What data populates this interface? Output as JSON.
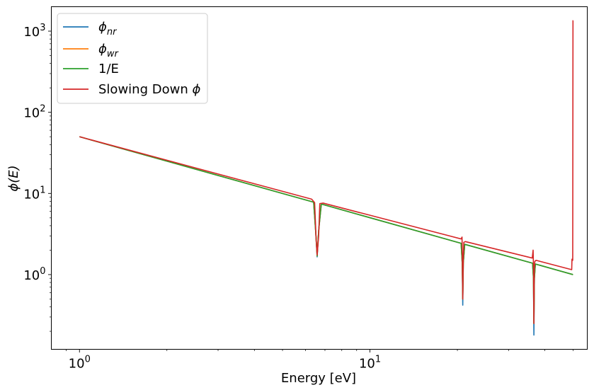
{
  "chart_data": {
    "type": "line",
    "title": "",
    "xlabel": "Energy [eV]",
    "ylabel": "ϕ(E)",
    "x_scale": "log",
    "y_scale": "log",
    "xlim": [
      0.8,
      56
    ],
    "ylim": [
      0.12,
      2000
    ],
    "grid": false,
    "legend_position": "top-left",
    "x_ticks": [
      {
        "value": 1,
        "base": "10",
        "exp": "0"
      },
      {
        "value": 10,
        "base": "10",
        "exp": "1"
      }
    ],
    "y_ticks": [
      {
        "value": 1,
        "base": "10",
        "exp": "0"
      },
      {
        "value": 10,
        "base": "10",
        "exp": "1"
      },
      {
        "value": 100,
        "base": "10",
        "exp": "2"
      },
      {
        "value": 1000,
        "base": "10",
        "exp": "3"
      }
    ],
    "series": [
      {
        "legend": {
          "main": "ϕ",
          "sub": "nr"
        },
        "color": "#1f77b4",
        "points": [
          [
            1,
            50
          ],
          [
            6.4,
            7.8
          ],
          [
            6.5,
            3.5
          ],
          [
            6.58,
            1.65
          ],
          [
            6.66,
            3.5
          ],
          [
            6.8,
            7.4
          ],
          [
            20.6,
            2.43
          ],
          [
            20.78,
            1.4
          ],
          [
            20.87,
            0.42
          ],
          [
            20.96,
            1.4
          ],
          [
            21.2,
            2.36
          ],
          [
            36.3,
            1.38
          ],
          [
            36.55,
            0.9
          ],
          [
            36.68,
            0.18
          ],
          [
            36.82,
            0.9
          ],
          [
            37.1,
            1.35
          ],
          [
            50,
            1.0
          ]
        ]
      },
      {
        "legend": {
          "main": "ϕ",
          "sub": "wr"
        },
        "color": "#ff7f0e",
        "points": [
          [
            1,
            50
          ],
          [
            6.4,
            7.8
          ],
          [
            6.5,
            3.5
          ],
          [
            6.58,
            1.7
          ],
          [
            6.66,
            3.5
          ],
          [
            6.8,
            7.4
          ],
          [
            20.6,
            2.43
          ],
          [
            20.78,
            1.4
          ],
          [
            20.87,
            0.5
          ],
          [
            20.96,
            1.4
          ],
          [
            21.2,
            2.36
          ],
          [
            36.3,
            1.38
          ],
          [
            36.55,
            0.9
          ],
          [
            36.68,
            0.25
          ],
          [
            36.82,
            0.9
          ],
          [
            37.1,
            1.35
          ],
          [
            50,
            1.0
          ]
        ]
      },
      {
        "legend": {
          "main": "1/E",
          "sub": ""
        },
        "color": "#2ca02c",
        "points": [
          [
            1,
            50
          ],
          [
            6.4,
            7.8
          ],
          [
            6.5,
            3.5
          ],
          [
            6.58,
            1.7
          ],
          [
            6.66,
            3.5
          ],
          [
            6.8,
            7.4
          ],
          [
            20.6,
            2.43
          ],
          [
            20.78,
            1.4
          ],
          [
            20.87,
            0.5
          ],
          [
            20.96,
            1.4
          ],
          [
            21.2,
            2.36
          ],
          [
            36.3,
            1.38
          ],
          [
            36.55,
            0.9
          ],
          [
            36.68,
            0.25
          ],
          [
            36.82,
            0.9
          ],
          [
            37.1,
            1.35
          ],
          [
            50,
            1.0
          ]
        ]
      },
      {
        "legend": {
          "main": "Slowing Down ϕ",
          "sub": ""
        },
        "color": "#d62728",
        "points": [
          [
            1,
            50
          ],
          [
            6.3,
            8.5
          ],
          [
            6.45,
            7.7
          ],
          [
            6.52,
            3.0
          ],
          [
            6.58,
            1.75
          ],
          [
            6.66,
            3.0
          ],
          [
            6.72,
            7.5
          ],
          [
            6.9,
            7.6
          ],
          [
            20.6,
            2.75
          ],
          [
            20.75,
            2.9
          ],
          [
            20.8,
            1.6
          ],
          [
            20.87,
            0.5
          ],
          [
            20.95,
            1.6
          ],
          [
            21.05,
            2.5
          ],
          [
            21.3,
            2.55
          ],
          [
            36.2,
            1.6
          ],
          [
            36.45,
            2.0
          ],
          [
            36.58,
            1.2
          ],
          [
            36.68,
            0.25
          ],
          [
            36.8,
            1.2
          ],
          [
            36.95,
            1.45
          ],
          [
            37.3,
            1.5
          ],
          [
            49.5,
            1.15
          ],
          [
            49.6,
            1.55
          ],
          [
            49.9,
            1.5
          ],
          [
            50.0,
            1350
          ],
          [
            50.05,
            1350
          ]
        ]
      }
    ]
  }
}
